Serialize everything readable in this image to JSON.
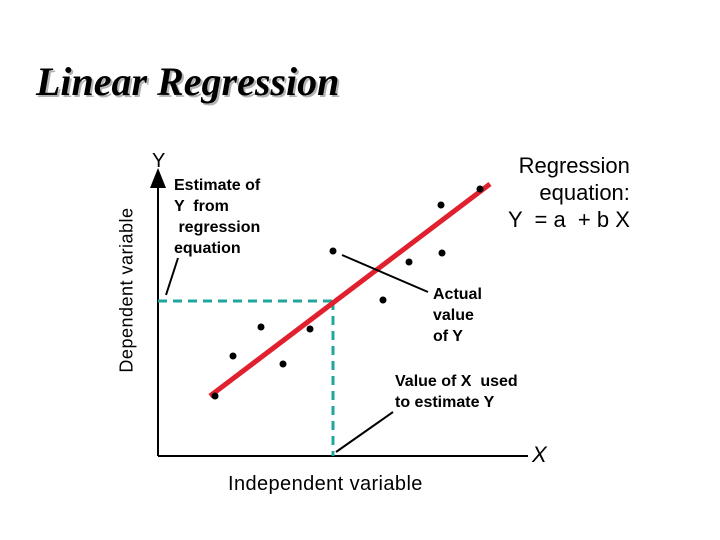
{
  "slide": {
    "title": "Linear Regression"
  },
  "axes": {
    "y_title": "Dependent variable",
    "x_title": "Independent variable",
    "y_letter": "Y",
    "x_letter": "X"
  },
  "annotations": {
    "estimate": [
      "Estimate of",
      "Y  from",
      " regression",
      "equation"
    ],
    "actual": [
      "Actual",
      "value",
      "of Y"
    ],
    "x_used": [
      "Value of X  used",
      "to estimate Y"
    ],
    "equation": [
      "Regression",
      "equation:",
      "Y  = a  + b X"
    ]
  },
  "colors": {
    "regression_line": "#e0202e",
    "guide_line": "#21a69b",
    "axis": "#000000"
  }
}
